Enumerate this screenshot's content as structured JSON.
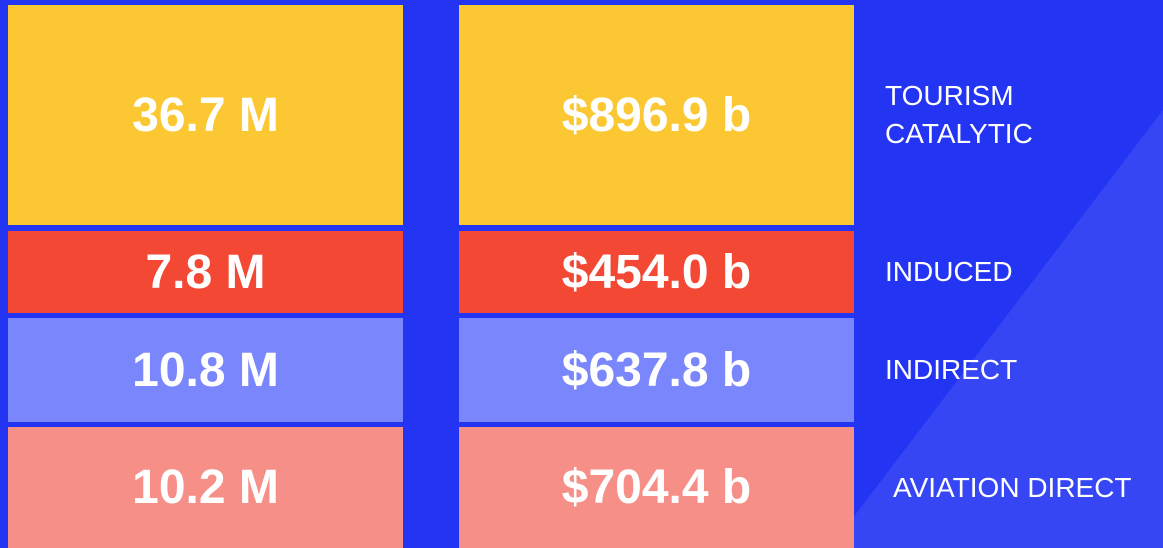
{
  "rows": [
    {
      "jobs": "36.7 M",
      "gdp": "$896.9 b",
      "label": "TOURISM CATALYTIC"
    },
    {
      "jobs": "7.8 M",
      "gdp": "$454.0 b",
      "label": "INDUCED"
    },
    {
      "jobs": "10.8 M",
      "gdp": "$637.8 b",
      "label": "INDIRECT"
    },
    {
      "jobs": "10.2 M",
      "gdp": "$704.4 b",
      "label": "AVIATION DIRECT"
    }
  ]
}
